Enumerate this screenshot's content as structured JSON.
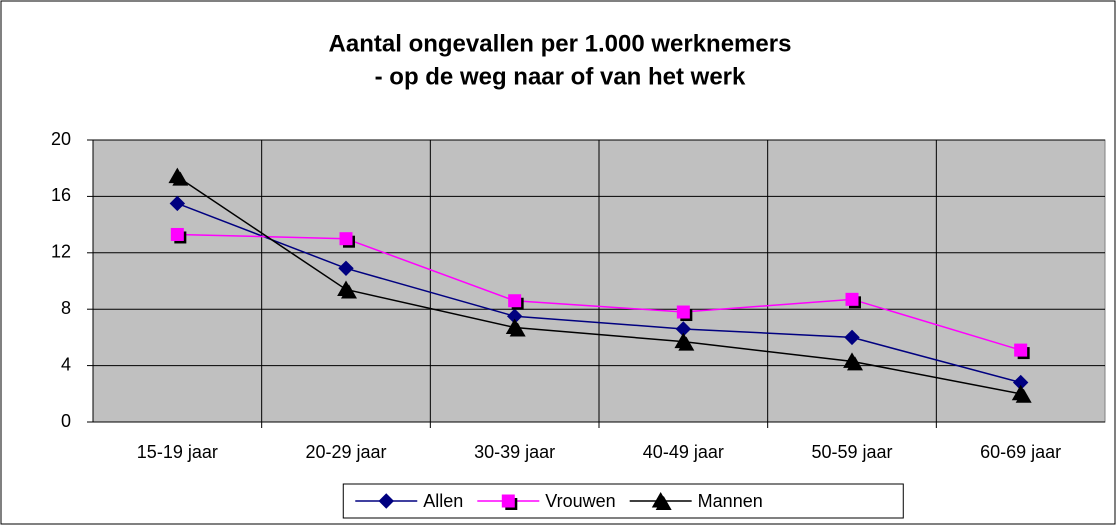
{
  "chart_data": {
    "type": "line",
    "title": "Aantal ongevallen per 1.000 werknemers",
    "subtitle": "- op de weg naar of van het werk",
    "categories": [
      "15-19 jaar",
      "20-29 jaar",
      "30-39 jaar",
      "40-49 jaar",
      "50-59 jaar",
      "60-69 jaar"
    ],
    "series": [
      {
        "name": "Allen",
        "color": "#000080",
        "marker": "diamond",
        "values": [
          15.5,
          10.9,
          7.5,
          6.6,
          6.0,
          2.8
        ]
      },
      {
        "name": "Vrouwen",
        "color": "#ff00ff",
        "marker": "square",
        "values": [
          13.3,
          13.0,
          8.6,
          7.8,
          8.7,
          5.1
        ]
      },
      {
        "name": "Mannen",
        "color": "#000000",
        "marker": "triangle",
        "values": [
          17.4,
          9.4,
          6.7,
          5.7,
          4.3,
          2.0
        ]
      }
    ],
    "ylim": [
      0,
      20
    ],
    "yticks": [
      0,
      4,
      8,
      12,
      16,
      20
    ],
    "grid": true,
    "legend": "bottom"
  }
}
